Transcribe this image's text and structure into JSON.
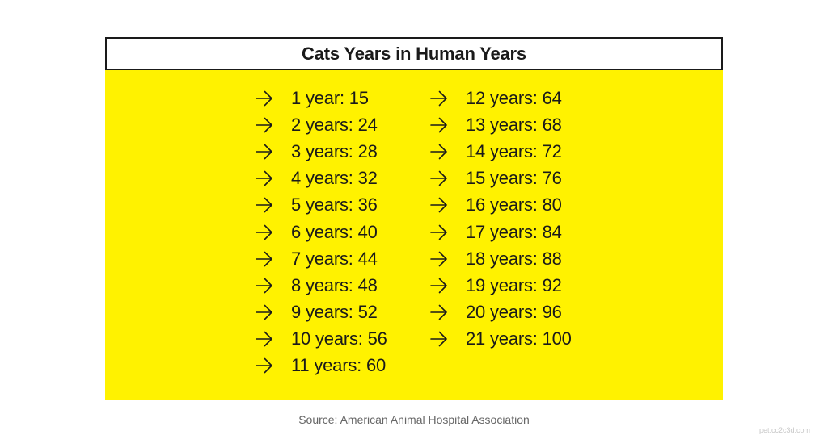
{
  "title": "Cats Years in Human Years",
  "left_column": [
    "1 year: 15",
    "2 years: 24",
    "3 years: 28",
    "4 years: 32",
    "5 years: 36",
    "6 years: 40",
    "7 years: 44",
    "8 years: 48",
    "9 years: 52",
    "10 years: 56",
    "11 years: 60"
  ],
  "right_column": [
    "12 years: 64",
    "13 years: 68",
    "14 years: 72",
    "15 years: 76",
    "16 years: 80",
    "17 years: 84",
    "18 years: 88",
    "19 years: 92",
    "20 years: 96",
    "21 years: 100"
  ],
  "source": "Source: American Animal Hospital Association",
  "watermark": "pet.cc2c3d.com",
  "colors": {
    "panel": "#fff200",
    "text": "#1a1a1a",
    "border": "#1a1a1a",
    "source_text": "#666666"
  },
  "icons": {
    "row_marker": "arrow-right-icon"
  }
}
